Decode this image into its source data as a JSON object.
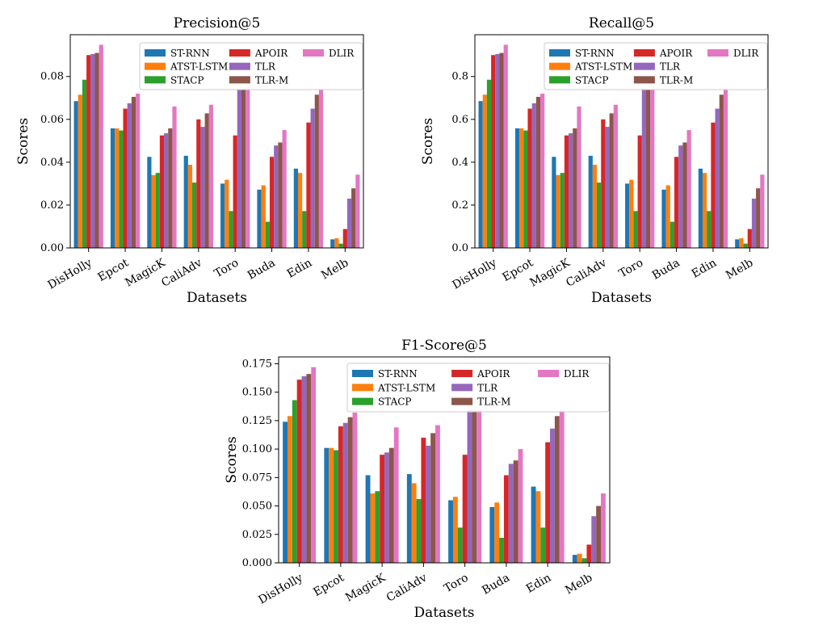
{
  "chart_data": [
    {
      "type": "bar",
      "title": "Precision@5",
      "xlabel": "Datasets",
      "ylabel": "Scores",
      "ylim": [
        0,
        0.0995
      ],
      "yticks": [
        "0.00",
        "0.02",
        "0.04",
        "0.06",
        "0.08"
      ],
      "categories": [
        "DisHolly",
        "Epcot",
        "MagicK",
        "CaliAdv",
        "Toro",
        "Buda",
        "Edin",
        "Melb"
      ],
      "legend": "upper-right, 3 columns",
      "series": [
        {
          "name": "ST-RNN",
          "color": "#1f77b4",
          "values": [
            0.0685,
            0.0558,
            0.0425,
            0.043,
            0.03,
            0.0272,
            0.037,
            0.004
          ]
        },
        {
          "name": "ATST-LSTM",
          "color": "#ff7f0e",
          "values": [
            0.0715,
            0.0558,
            0.034,
            0.0388,
            0.0318,
            0.0292,
            0.035,
            0.0045
          ]
        },
        {
          "name": "STACP",
          "color": "#2ca02c",
          "values": [
            0.0785,
            0.0548,
            0.035,
            0.0305,
            0.0172,
            0.0122,
            0.0172,
            0.002
          ]
        },
        {
          "name": "APOIR",
          "color": "#d62728",
          "values": [
            0.09,
            0.065,
            0.0525,
            0.06,
            0.0525,
            0.0425,
            0.0585,
            0.0088
          ]
        },
        {
          "name": "TLR",
          "color": "#9467bd",
          "values": [
            0.0905,
            0.0675,
            0.0535,
            0.0565,
            0.074,
            0.0478,
            0.065,
            0.023
          ]
        },
        {
          "name": "TLR-M",
          "color": "#8c564b",
          "values": [
            0.091,
            0.0705,
            0.0558,
            0.0628,
            0.074,
            0.0492,
            0.0715,
            0.0278
          ]
        },
        {
          "name": "DLIR",
          "color": "#e377c2",
          "values": [
            0.0948,
            0.072,
            0.066,
            0.0668,
            0.074,
            0.055,
            0.074,
            0.0342
          ]
        }
      ]
    },
    {
      "type": "bar",
      "title": "Recall@5",
      "xlabel": "Datasets",
      "ylabel": "Scores",
      "ylim": [
        0,
        0.995
      ],
      "yticks": [
        "0.0",
        "0.2",
        "0.4",
        "0.6",
        "0.8"
      ],
      "categories": [
        "DisHolly",
        "Epcot",
        "MagicK",
        "CaliAdv",
        "Toro",
        "Buda",
        "Edin",
        "Melb"
      ],
      "legend": "upper-right, 3 columns",
      "series": [
        {
          "name": "ST-RNN",
          "color": "#1f77b4",
          "values": [
            0.685,
            0.558,
            0.425,
            0.43,
            0.3,
            0.272,
            0.37,
            0.04
          ]
        },
        {
          "name": "ATST-LSTM",
          "color": "#ff7f0e",
          "values": [
            0.715,
            0.558,
            0.34,
            0.388,
            0.318,
            0.292,
            0.35,
            0.045
          ]
        },
        {
          "name": "STACP",
          "color": "#2ca02c",
          "values": [
            0.785,
            0.548,
            0.35,
            0.305,
            0.172,
            0.122,
            0.172,
            0.02
          ]
        },
        {
          "name": "APOIR",
          "color": "#d62728",
          "values": [
            0.9,
            0.65,
            0.525,
            0.6,
            0.525,
            0.425,
            0.585,
            0.088
          ]
        },
        {
          "name": "TLR",
          "color": "#9467bd",
          "values": [
            0.905,
            0.675,
            0.535,
            0.565,
            0.74,
            0.478,
            0.65,
            0.23
          ]
        },
        {
          "name": "TLR-M",
          "color": "#8c564b",
          "values": [
            0.91,
            0.705,
            0.558,
            0.628,
            0.74,
            0.492,
            0.715,
            0.278
          ]
        },
        {
          "name": "DLIR",
          "color": "#e377c2",
          "values": [
            0.948,
            0.72,
            0.66,
            0.668,
            0.74,
            0.55,
            0.74,
            0.342
          ]
        }
      ]
    },
    {
      "type": "bar",
      "title": "F1-Score@5",
      "xlabel": "Datasets",
      "ylabel": "Scores",
      "ylim": [
        0,
        0.181
      ],
      "yticks": [
        "0.000",
        "0.025",
        "0.050",
        "0.075",
        "0.100",
        "0.125",
        "0.150",
        "0.175"
      ],
      "categories": [
        "DisHolly",
        "Epcot",
        "MagicK",
        "CaliAdv",
        "Toro",
        "Buda",
        "Edin",
        "Melb"
      ],
      "legend": "upper-right, 3 columns",
      "series": [
        {
          "name": "ST-RNN",
          "color": "#1f77b4",
          "values": [
            0.124,
            0.101,
            0.077,
            0.078,
            0.055,
            0.049,
            0.067,
            0.007
          ]
        },
        {
          "name": "ATST-LSTM",
          "color": "#ff7f0e",
          "values": [
            0.129,
            0.101,
            0.061,
            0.07,
            0.058,
            0.053,
            0.063,
            0.008
          ]
        },
        {
          "name": "STACP",
          "color": "#2ca02c",
          "values": [
            0.143,
            0.099,
            0.063,
            0.056,
            0.031,
            0.022,
            0.031,
            0.004
          ]
        },
        {
          "name": "APOIR",
          "color": "#d62728",
          "values": [
            0.161,
            0.12,
            0.095,
            0.11,
            0.095,
            0.077,
            0.106,
            0.016
          ]
        },
        {
          "name": "TLR",
          "color": "#9467bd",
          "values": [
            0.164,
            0.123,
            0.097,
            0.103,
            0.134,
            0.087,
            0.118,
            0.041
          ]
        },
        {
          "name": "TLR-M",
          "color": "#8c564b",
          "values": [
            0.166,
            0.128,
            0.101,
            0.114,
            0.134,
            0.09,
            0.129,
            0.05
          ]
        },
        {
          "name": "DLIR",
          "color": "#e377c2",
          "values": [
            0.172,
            0.132,
            0.119,
            0.121,
            0.134,
            0.1,
            0.134,
            0.061
          ]
        }
      ]
    }
  ]
}
